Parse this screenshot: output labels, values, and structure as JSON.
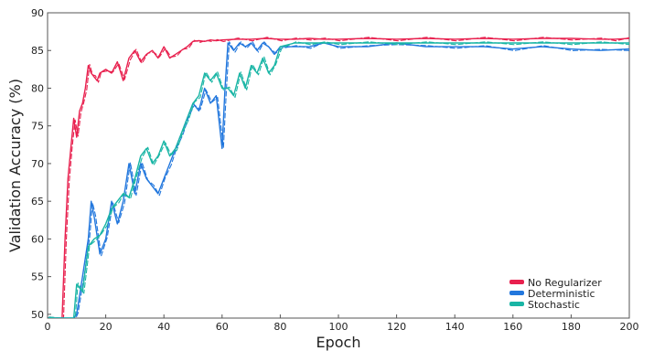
{
  "chart_data": {
    "type": "line",
    "xlabel": "Epoch",
    "ylabel": "Validation Accuracy (%)",
    "xlim": [
      0,
      200
    ],
    "ylim": [
      49.5,
      90
    ],
    "xticks": [
      0,
      20,
      40,
      60,
      80,
      100,
      120,
      140,
      160,
      180,
      200
    ],
    "yticks": [
      50,
      55,
      60,
      65,
      70,
      75,
      80,
      85,
      90
    ],
    "grid": false,
    "legend_position": "bottom-right",
    "series": [
      {
        "name": "No Regularizer",
        "color": "#e8204e",
        "x": [
          0,
          5,
          6,
          7,
          8,
          9,
          10,
          11,
          12,
          13,
          14,
          15,
          16,
          17,
          18,
          20,
          22,
          24,
          26,
          28,
          30,
          32,
          34,
          36,
          38,
          40,
          42,
          44,
          46,
          48,
          50,
          52,
          54,
          56,
          58,
          60,
          65,
          70,
          75,
          80,
          85,
          90,
          95,
          100,
          110,
          120,
          130,
          140,
          150,
          160,
          170,
          180,
          190,
          195,
          200
        ],
        "y": [
          49.5,
          49.5,
          60,
          68,
          72,
          76,
          73.5,
          77,
          78,
          80,
          83,
          82,
          81.5,
          81,
          82,
          82.5,
          82,
          83.5,
          81,
          84,
          85,
          83.5,
          84.5,
          85,
          84,
          85.5,
          84,
          84.5,
          85,
          85.5,
          86.2,
          86.3,
          86.2,
          86.4,
          86.3,
          86.4,
          86.5,
          86.5,
          86.6,
          86.5,
          86.5,
          86.6,
          86.5,
          86.5,
          86.6,
          86.5,
          86.6,
          86.5,
          86.6,
          86.5,
          86.6,
          86.6,
          86.5,
          86.5,
          86.6
        ]
      },
      {
        "name": "Deterministic",
        "color": "#2277dd",
        "x": [
          0,
          9,
          10,
          12,
          14,
          15,
          16,
          18,
          20,
          22,
          24,
          26,
          28,
          30,
          32,
          34,
          36,
          38,
          40,
          42,
          44,
          46,
          48,
          50,
          52,
          54,
          56,
          58,
          60,
          61,
          62,
          64,
          66,
          68,
          70,
          72,
          74,
          76,
          78,
          80,
          85,
          90,
          95,
          100,
          110,
          120,
          130,
          140,
          150,
          160,
          170,
          180,
          190,
          200
        ],
        "y": [
          49.5,
          49.5,
          50,
          55,
          60,
          65,
          63,
          58,
          60,
          65,
          62,
          65,
          70,
          66,
          70,
          68,
          67,
          66,
          68,
          70,
          72,
          74,
          76,
          78,
          77,
          80,
          78,
          79,
          72,
          80,
          86,
          85,
          86,
          85.5,
          86,
          85,
          86,
          85.5,
          84.5,
          85.5,
          85.5,
          85.5,
          86,
          85.5,
          85.5,
          86,
          85.5,
          85.5,
          85.5,
          85.2,
          85.5,
          85.2,
          85,
          85.2
        ]
      },
      {
        "name": "Stochastic",
        "color": "#19b5a5",
        "x": [
          0,
          9,
          10,
          12,
          14,
          16,
          18,
          20,
          22,
          24,
          26,
          28,
          30,
          32,
          34,
          36,
          38,
          40,
          42,
          44,
          46,
          48,
          50,
          52,
          54,
          56,
          58,
          60,
          62,
          64,
          66,
          68,
          70,
          72,
          74,
          76,
          78,
          80,
          85,
          90,
          95,
          100,
          110,
          120,
          130,
          140,
          150,
          160,
          170,
          180,
          190,
          200
        ],
        "y": [
          49.5,
          49.5,
          54,
          53,
          59,
          60,
          60.5,
          62,
          64,
          65,
          66,
          65.5,
          68,
          71,
          72,
          70,
          71,
          73,
          71,
          72,
          74,
          76,
          78,
          79,
          82,
          81,
          82,
          80,
          80,
          79,
          82,
          80,
          83,
          82,
          84,
          82,
          83,
          85.5,
          86,
          86,
          86,
          86,
          86,
          86,
          86,
          86,
          86,
          86,
          86,
          86,
          86,
          86
        ]
      }
    ]
  }
}
